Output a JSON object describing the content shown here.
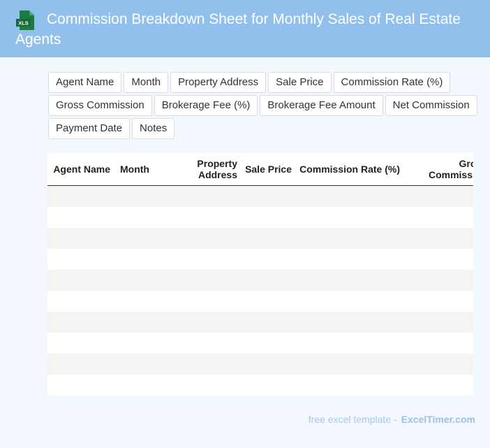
{
  "header": {
    "title": "Commission Breakdown Sheet for Monthly Sales of Real Estate Agents",
    "icon": "xls-file-icon",
    "icon_text": "XLS",
    "background": "#92c0ec",
    "icon_color": "#1e7a45"
  },
  "columns": [
    "Agent Name",
    "Month",
    "Property Address",
    "Sale Price",
    "Commission Rate (%)",
    "Gross Commission",
    "Brokerage Fee (%)",
    "Brokerage Fee Amount",
    "Net Commission",
    "Payment Date",
    "Notes"
  ],
  "table": {
    "row_count": 10,
    "stripe_color": "#f4f4f4"
  },
  "footer": {
    "text": "free excel template -",
    "brand": "ExcelTimer.com"
  }
}
